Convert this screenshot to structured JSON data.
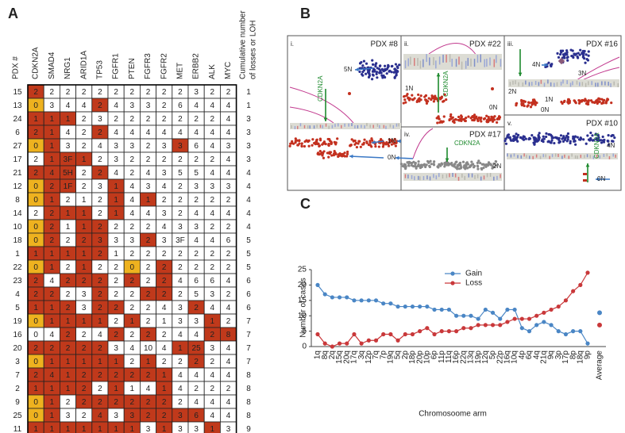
{
  "panel_a": {
    "label": "A",
    "pdx_header": "PDX #",
    "cumulative_header": [
      "Cumulative number",
      "of losses or LOH"
    ],
    "genes": [
      "CDKN2A",
      "SMAD4",
      "NRG1",
      "ARID1A",
      "TP53",
      "FGFR1",
      "PTEN",
      "FGFR3",
      "FGFR2",
      "MET",
      "ERBB2",
      "ALK",
      "MYC"
    ],
    "cell_colors": {
      "L": "#c0391b",
      "Y": "#eeb21f",
      "W": "#ffffff"
    },
    "rows": [
      {
        "pdx": "15",
        "cells": [
          "2",
          "2",
          "2",
          "2",
          "2",
          "2",
          "2",
          "2",
          "2",
          "2",
          "3",
          "2",
          "2"
        ],
        "fill": "LWWWWWWWWWWWW",
        "cumulative": "1"
      },
      {
        "pdx": "13",
        "cells": [
          "0",
          "3",
          "4",
          "4",
          "2",
          "4",
          "3",
          "3",
          "2",
          "6",
          "4",
          "4",
          "4"
        ],
        "fill": "YWWWLWWWWWWWW",
        "cumulative": "1"
      },
      {
        "pdx": "24",
        "cells": [
          "1",
          "1",
          "1",
          "2",
          "3",
          "2",
          "2",
          "2",
          "2",
          "2",
          "2",
          "2",
          "4"
        ],
        "fill": "LLLWWWWWWWWWW",
        "cumulative": "3"
      },
      {
        "pdx": "6",
        "cells": [
          "2",
          "1",
          "4",
          "2",
          "2",
          "4",
          "4",
          "4",
          "4",
          "4",
          "4",
          "4",
          "4"
        ],
        "fill": "LLWWLWWWWWWWW",
        "cumulative": "3"
      },
      {
        "pdx": "27",
        "cells": [
          "0",
          "1",
          "3",
          "2",
          "4",
          "3",
          "3",
          "2",
          "3",
          "3",
          "6",
          "4",
          "3"
        ],
        "fill": "YLWWWWWWWLWWW",
        "cumulative": "3"
      },
      {
        "pdx": "17",
        "cells": [
          "2",
          "1",
          "3F",
          "1",
          "2",
          "3",
          "2",
          "2",
          "2",
          "2",
          "2",
          "2",
          "4"
        ],
        "fill": "WLLLWWWWWWWWW",
        "cumulative": "3"
      },
      {
        "pdx": "21",
        "cells": [
          "2",
          "4",
          "5H",
          "2",
          "2",
          "4",
          "2",
          "4",
          "3",
          "5",
          "5",
          "4",
          "4"
        ],
        "fill": "LLLWLWWWWWWWW",
        "cumulative": "4"
      },
      {
        "pdx": "12",
        "cells": [
          "0",
          "2",
          "1F",
          "2",
          "3",
          "1",
          "4",
          "3",
          "4",
          "2",
          "3",
          "3",
          "3"
        ],
        "fill": "YLLWWLWWWWWWW",
        "cumulative": "4"
      },
      {
        "pdx": "8",
        "cells": [
          "0",
          "1",
          "2",
          "1",
          "2",
          "1",
          "4",
          "1",
          "2",
          "2",
          "2",
          "2",
          "2"
        ],
        "fill": "YLWWWLWLWWWWW",
        "cumulative": "4"
      },
      {
        "pdx": "14",
        "cells": [
          "2",
          "2",
          "1",
          "1",
          "2",
          "1",
          "4",
          "4",
          "3",
          "2",
          "4",
          "4",
          "4"
        ],
        "fill": "WLLLWLWWWWWWW",
        "cumulative": "4"
      },
      {
        "pdx": "10",
        "cells": [
          "0",
          "2",
          "1",
          "1",
          "2",
          "2",
          "2",
          "2",
          "4",
          "3",
          "3",
          "2",
          "2"
        ],
        "fill": "YLWLLWWWWWWWW",
        "cumulative": "4"
      },
      {
        "pdx": "18",
        "cells": [
          "0",
          "2",
          "2",
          "2",
          "3",
          "3",
          "3",
          "2",
          "3",
          "3F",
          "4",
          "4",
          "6"
        ],
        "fill": "YLWLLWWLWWWWW",
        "cumulative": "5"
      },
      {
        "pdx": "1",
        "cells": [
          "1",
          "1",
          "1",
          "1",
          "2",
          "1",
          "2",
          "2",
          "2",
          "2",
          "2",
          "2",
          "2"
        ],
        "fill": "LLLLLWWWWWWWW",
        "cumulative": "5"
      },
      {
        "pdx": "22",
        "cells": [
          "0",
          "1",
          "2",
          "1",
          "2",
          "2",
          "0",
          "2",
          "2",
          "2",
          "2",
          "2",
          "2"
        ],
        "fill": "YLWLWWYWLWWWW",
        "cumulative": "5"
      },
      {
        "pdx": "23",
        "cells": [
          "2",
          "4",
          "2",
          "2",
          "2",
          "2",
          "2",
          "2",
          "2",
          "4",
          "6",
          "6",
          "4"
        ],
        "fill": "LWLLLWLWLWWWW",
        "cumulative": "6"
      },
      {
        "pdx": "4",
        "cells": [
          "2",
          "2",
          "2",
          "3",
          "2",
          "2",
          "2",
          "2",
          "2",
          "2",
          "5",
          "3",
          "2"
        ],
        "fill": "LLWWLWWLLWWWW",
        "cumulative": "6"
      },
      {
        "pdx": "5",
        "cells": [
          "1",
          "1",
          "2",
          "3",
          "2",
          "2",
          "2",
          "2",
          "4",
          "3",
          "2",
          "4",
          "4"
        ],
        "fill": "LLLWLLWWWWLWW",
        "cumulative": "6"
      },
      {
        "pdx": "19",
        "cells": [
          "0",
          "1",
          "1",
          "1",
          "1",
          "2",
          "1",
          "2",
          "1",
          "3",
          "3",
          "1",
          "2"
        ],
        "fill": "YLLLLWLWWWWLW",
        "cumulative": "7"
      },
      {
        "pdx": "16",
        "cells": [
          "0",
          "4",
          "2",
          "2",
          "4",
          "2",
          "2",
          "2",
          "2",
          "4",
          "4",
          "2",
          "8"
        ],
        "fill": "WWLWWLWLWWWLL",
        "cumulative": "7"
      },
      {
        "pdx": "20",
        "cells": [
          "2",
          "2",
          "2",
          "2",
          "2",
          "3",
          "4",
          "10",
          "4",
          "1",
          "25",
          "3",
          "4"
        ],
        "fill": "LLLLLWWWWLLWW",
        "cumulative": "7"
      },
      {
        "pdx": "3",
        "cells": [
          "0",
          "1",
          "1",
          "1",
          "1",
          "1",
          "2",
          "1",
          "2",
          "2",
          "2",
          "2",
          "4"
        ],
        "fill": "YLLLLLWLWWLWW",
        "cumulative": "7"
      },
      {
        "pdx": "7",
        "cells": [
          "2",
          "4",
          "1",
          "2",
          "2",
          "2",
          "2",
          "2",
          "1",
          "4",
          "4",
          "4",
          "4"
        ],
        "fill": "LLLLLLLLLWWWW",
        "cumulative": "8"
      },
      {
        "pdx": "2",
        "cells": [
          "1",
          "1",
          "1",
          "2",
          "2",
          "1",
          "1",
          "4",
          "1",
          "4",
          "2",
          "2",
          "2"
        ],
        "fill": "LLLLWLWWLWWWW",
        "cumulative": "8"
      },
      {
        "pdx": "9",
        "cells": [
          "0",
          "1",
          "2",
          "2",
          "2",
          "2",
          "2",
          "2",
          "2",
          "2",
          "4",
          "4",
          "4"
        ],
        "fill": "YLWLLLLLLWWWW",
        "cumulative": "8"
      },
      {
        "pdx": "25",
        "cells": [
          "0",
          "1",
          "3",
          "2",
          "4",
          "3",
          "3",
          "2",
          "2",
          "3",
          "6",
          "4",
          "4"
        ],
        "fill": "YLWWLWLLLLLWW",
        "cumulative": "8"
      },
      {
        "pdx": "11",
        "cells": [
          "1",
          "1",
          "1",
          "1",
          "1",
          "1",
          "1",
          "3",
          "1",
          "3",
          "3",
          "1",
          "3"
        ],
        "fill": "LLLLLLLWLWWLW",
        "cumulative": "9"
      }
    ]
  },
  "panel_b": {
    "label": "B",
    "panels": [
      {
        "numeral": "i.",
        "title": "PDX #8",
        "labels": [
          "5N",
          "CDKN2A",
          "1N",
          "0N"
        ]
      },
      {
        "numeral": "ii.",
        "title": "PDX #22",
        "labels": [
          "CDKN2A",
          "1N",
          "0N"
        ]
      },
      {
        "numeral": "iii.",
        "title": "PDX #16",
        "labels": [
          "4N",
          "3N",
          "2N",
          "1N",
          "0N"
        ]
      },
      {
        "numeral": "iv.",
        "title": "PDX #17",
        "labels": [
          "CDKN2A",
          "2N"
        ]
      },
      {
        "numeral": "v.",
        "title": "PDX #10",
        "labels": [
          "4N",
          "CDKN2A",
          "0N"
        ]
      }
    ]
  },
  "chart_data": {
    "type": "line",
    "panel_label": "C",
    "x_label": "Chromosoome arm",
    "y_label": "Number of cases",
    "categories": [
      "1q",
      "8q",
      "2q",
      "15q",
      "20q",
      "17q",
      "3q",
      "12p",
      "7q",
      "7p",
      "19q",
      "5q",
      "2p",
      "18p",
      "20p",
      "10p",
      "6p",
      "11p",
      "11q",
      "16p",
      "22q",
      "13q",
      "19p",
      "12q",
      "5p",
      "22p",
      "16q",
      "10q",
      "4p",
      "6q",
      "4q",
      "21q",
      "9q",
      "3p",
      "17p",
      "8p",
      "18q",
      "9p"
    ],
    "average_label": "Average",
    "series": [
      {
        "name": "Gain",
        "color": "#4a86c5",
        "values": [
          20,
          17,
          16,
          16,
          16,
          15,
          15,
          15,
          15,
          14,
          14,
          13,
          13,
          13,
          13,
          13,
          12,
          12,
          12,
          10,
          10,
          10,
          9,
          12,
          11,
          9,
          12,
          12,
          6,
          5,
          7,
          8,
          7,
          5,
          4,
          5,
          5,
          1
        ],
        "average": 11
      },
      {
        "name": "Loss",
        "color": "#c9383a",
        "values": [
          4,
          1,
          0,
          1,
          1,
          4,
          1,
          2,
          2,
          4,
          4,
          2,
          4,
          4,
          5,
          6,
          4,
          5,
          5,
          5,
          6,
          6,
          7,
          7,
          7,
          7,
          8,
          9,
          9,
          9,
          10,
          11,
          12,
          13,
          15,
          18,
          20,
          24
        ],
        "average": 7
      }
    ],
    "ylim": [
      0,
      25
    ],
    "yticks": [
      0,
      5,
      10,
      15,
      20,
      25
    ]
  }
}
